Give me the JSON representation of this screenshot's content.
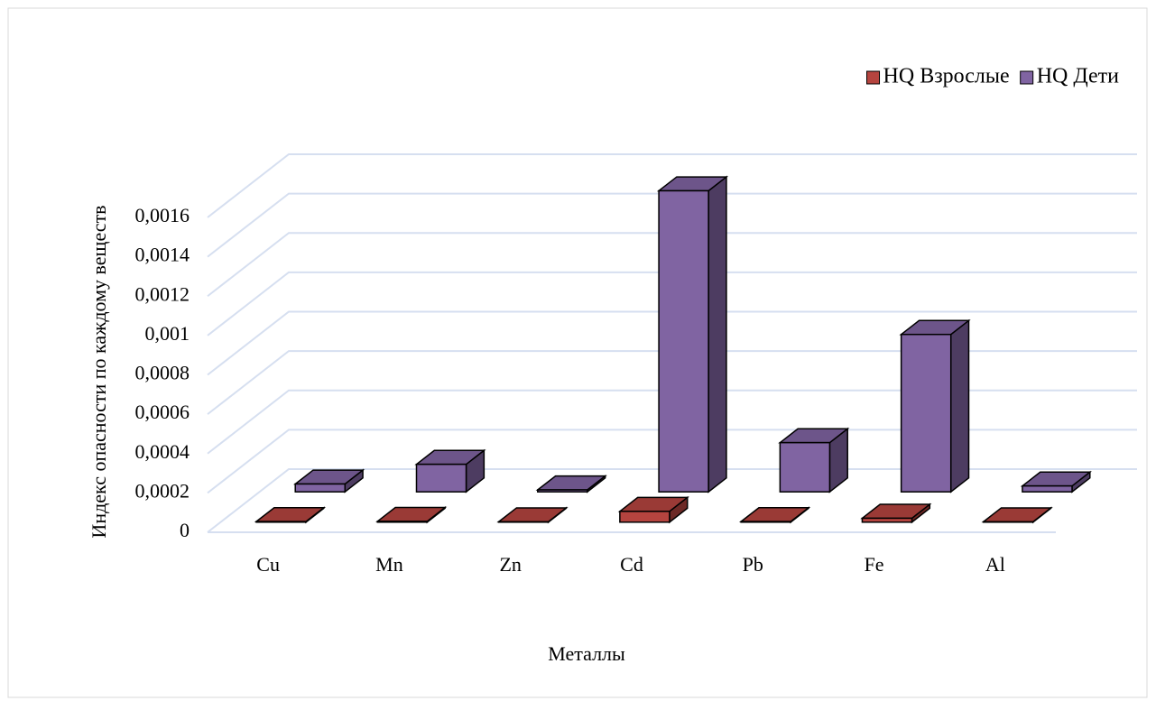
{
  "chart_data": {
    "type": "bar3d",
    "x_label": "Металлы",
    "y_label": "Индекс опасности по каждому веществ",
    "categories": [
      "Cu",
      "Mn",
      "Zn",
      "Cd",
      "Pb",
      "Fe",
      "Al"
    ],
    "series": [
      {
        "name": "HQ Взрослые",
        "color": "#b5443f",
        "values": [
          3e-06,
          4e-06,
          2e-06,
          5.5e-05,
          3e-06,
          2e-05,
          2e-06
        ]
      },
      {
        "name": "HQ Дети",
        "color": "#8064a2",
        "values": [
          4e-05,
          0.00014,
          1e-05,
          0.00153,
          0.00025,
          0.0008,
          3e-05
        ]
      }
    ],
    "ylim": [
      0,
      0.0016
    ],
    "yticks": [
      0,
      {
        "value": 0.0002,
        "label": "0,0002"
      },
      {
        "value": 0.0004,
        "label": "0,0004"
      },
      {
        "value": 0.0006,
        "label": "0,0006"
      },
      {
        "value": 0.0008,
        "label": "0,0008"
      },
      {
        "value": 0.001,
        "label": "0,001"
      },
      {
        "value": 0.0012,
        "label": "0,0012"
      },
      {
        "value": 0.0014,
        "label": "0,0014"
      },
      {
        "value": 0.0016,
        "label": "0,0016"
      }
    ],
    "grid": true,
    "legend": "top-right"
  }
}
